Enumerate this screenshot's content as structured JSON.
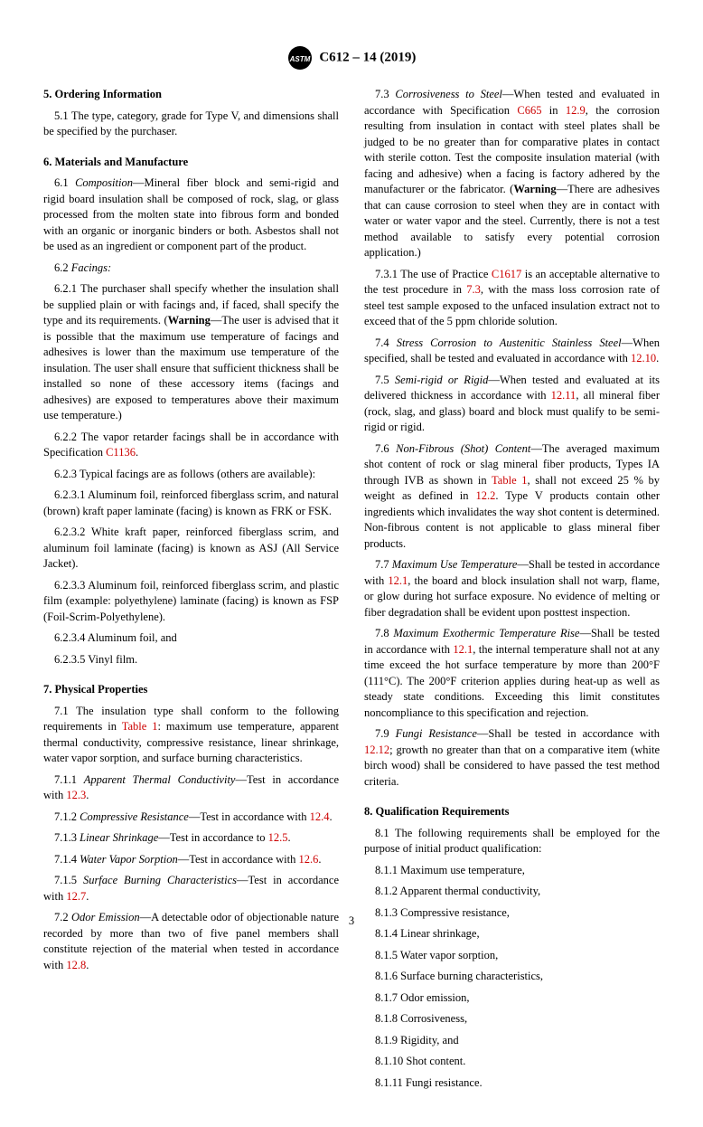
{
  "header": {
    "designation": "C612 – 14 (2019)"
  },
  "sections": [
    {
      "num": "5.",
      "title": "Ordering Information",
      "paras": [
        {
          "num": "5.1",
          "text": "The type, category, grade for Type V, and dimensions shall be specified by the purchaser."
        }
      ]
    },
    {
      "num": "6.",
      "title": "Materials and Manufacture",
      "paras": [
        {
          "num": "6.1",
          "italic": "Composition",
          "text": "—Mineral fiber block and semi-rigid and rigid board insulation shall be composed of rock, slag, or glass processed from the molten state into fibrous form and bonded with an organic or inorganic binders or both. Asbestos shall not be used as an ingredient or component part of the product."
        },
        {
          "num": "6.2",
          "italic": "Facings:",
          "text": ""
        },
        {
          "num": "6.2.1",
          "text": "The purchaser shall specify whether the insulation shall be supplied plain or with facings and, if faced, shall specify the type and its requirements. (<b>Warning</b>—The user is advised that it is possible that the maximum use temperature of facings and adhesives is lower than the maximum use temperature of the insulation. The user shall ensure that sufficient thickness shall be installed so none of these accessory items (facings and adhesives) are exposed to temperatures above their maximum use temperature.)"
        },
        {
          "num": "6.2.2",
          "text": "The vapor retarder facings shall be in accordance with Specification <a class=\"link\">C1136</a>."
        },
        {
          "num": "6.2.3",
          "text": "Typical facings are as follows (others are available):"
        },
        {
          "num": "6.2.3.1",
          "text": "Aluminum foil, reinforced fiberglass scrim, and natural (brown) kraft paper laminate (facing) is known as FRK or FSK."
        },
        {
          "num": "6.2.3.2",
          "text": "White kraft paper, reinforced fiberglass scrim, and aluminum foil laminate (facing) is known as ASJ (All Service Jacket)."
        },
        {
          "num": "6.2.3.3",
          "text": "Aluminum foil, reinforced fiberglass scrim, and plastic film (example: polyethylene) laminate (facing) is known as FSP (Foil-Scrim-Polyethylene)."
        },
        {
          "num": "6.2.3.4",
          "text": "Aluminum foil, and"
        },
        {
          "num": "6.2.3.5",
          "text": "Vinyl film."
        }
      ]
    },
    {
      "num": "7.",
      "title": "Physical Properties",
      "paras": [
        {
          "num": "7.1",
          "text": "The insulation type shall conform to the following requirements in <a class=\"link\">Table 1</a>: maximum use temperature, apparent thermal conductivity, compressive resistance, linear shrinkage, water vapor sorption, and surface burning characteristics."
        },
        {
          "num": "7.1.1",
          "italic": "Apparent Thermal Conductivity",
          "text": "—Test in accordance with <a class=\"link\">12.3</a>."
        },
        {
          "num": "7.1.2",
          "italic": "Compressive Resistance",
          "text": "—Test in accordance with <a class=\"link\">12.4</a>."
        },
        {
          "num": "7.1.3",
          "italic": "Linear Shrinkage",
          "text": "—Test in accordance to <a class=\"link\">12.5</a>."
        },
        {
          "num": "7.1.4",
          "italic": "Water Vapor Sorption",
          "text": "—Test in accordance with <a class=\"link\">12.6</a>."
        },
        {
          "num": "7.1.5",
          "italic": "Surface Burning Characteristics",
          "text": "—Test in accordance with <a class=\"link\">12.7</a>."
        },
        {
          "num": "7.2",
          "italic": "Odor Emission",
          "text": "—A detectable odor of objectionable nature recorded by more than two of five panel members shall constitute rejection of the material when tested in accordance with <a class=\"link\">12.8</a>."
        },
        {
          "num": "7.3",
          "italic": "Corrosiveness to Steel",
          "text": "—When tested and evaluated in accordance with Specification <a class=\"link\">C665</a> in <a class=\"link\">12.9</a>, the corrosion resulting from insulation in contact with steel plates shall be judged to be no greater than for comparative plates in contact with sterile cotton. Test the composite insulation material (with facing and adhesive) when a facing is factory adhered by the manufacturer or the fabricator. (<b>Warning</b>—There are adhesives that can cause corrosion to steel when they are in contact with water or water vapor and the steel. Currently, there is not a test method available to satisfy every potential corrosion application.)"
        },
        {
          "num": "7.3.1",
          "text": "The use of Practice <a class=\"link\">C1617</a> is an acceptable alternative to the test procedure in <a class=\"link\">7.3</a>, with the mass loss corrosion rate of steel test sample exposed to the unfaced insulation extract not to exceed that of the 5 ppm chloride solution."
        },
        {
          "num": "7.4",
          "italic": "Stress Corrosion to Austenitic Stainless Steel",
          "text": "—When specified, shall be tested and evaluated in accordance with <a class=\"link\">12.10</a>."
        },
        {
          "num": "7.5",
          "italic": "Semi-rigid or Rigid",
          "text": "—When tested and evaluated at its delivered thickness in accordance with <a class=\"link\">12.11</a>, all mineral fiber (rock, slag, and glass) board and block must qualify to be semi-rigid or rigid."
        },
        {
          "num": "7.6",
          "italic": "Non-Fibrous (Shot) Content",
          "text": "—The averaged maximum shot content of rock or slag mineral fiber products, Types IA through IVB as shown in <a class=\"link\">Table 1</a>, shall not exceed 25 % by weight as defined in <a class=\"link\">12.2</a>. Type V products contain other ingredients which invalidates the way shot content is determined. Non-fibrous content is not applicable to glass mineral fiber products."
        },
        {
          "num": "7.7",
          "italic": "Maximum Use Temperature",
          "text": "—Shall be tested in accordance with <a class=\"link\">12.1</a>, the board and block insulation shall not warp, flame, or glow during hot surface exposure. No evidence of melting or fiber degradation shall be evident upon posttest inspection."
        },
        {
          "num": "7.8",
          "italic": "Maximum Exothermic Temperature Rise",
          "text": "—Shall be tested in accordance with <a class=\"link\">12.1</a>, the internal temperature shall not at any time exceed the hot surface temperature by more than 200°F (111°C). The 200°F criterion applies during heat-up as well as steady state conditions. Exceeding this limit constitutes noncompliance to this specification and rejection."
        },
        {
          "num": "7.9",
          "italic": "Fungi Resistance",
          "text": "—Shall be tested in accordance with <a class=\"link\">12.12</a>; growth no greater than that on a comparative item (white birch wood) shall be considered to have passed the test method criteria."
        }
      ]
    },
    {
      "num": "8.",
      "title": "Qualification Requirements",
      "paras": [
        {
          "num": "8.1",
          "text": "The following requirements shall be employed for the purpose of initial product qualification:"
        },
        {
          "num": "8.1.1",
          "text": "Maximum use temperature,"
        },
        {
          "num": "8.1.2",
          "text": "Apparent thermal conductivity,"
        },
        {
          "num": "8.1.3",
          "text": "Compressive resistance,"
        },
        {
          "num": "8.1.4",
          "text": "Linear shrinkage,"
        },
        {
          "num": "8.1.5",
          "text": "Water vapor sorption,"
        },
        {
          "num": "8.1.6",
          "text": "Surface burning characteristics,"
        },
        {
          "num": "8.1.7",
          "text": "Odor emission,"
        },
        {
          "num": "8.1.8",
          "text": "Corrosiveness,"
        },
        {
          "num": "8.1.9",
          "text": "Rigidity, and"
        },
        {
          "num": "8.1.10",
          "text": "Shot content."
        },
        {
          "num": "8.1.11",
          "text": "Fungi resistance."
        }
      ]
    }
  ],
  "pagenum": "3"
}
